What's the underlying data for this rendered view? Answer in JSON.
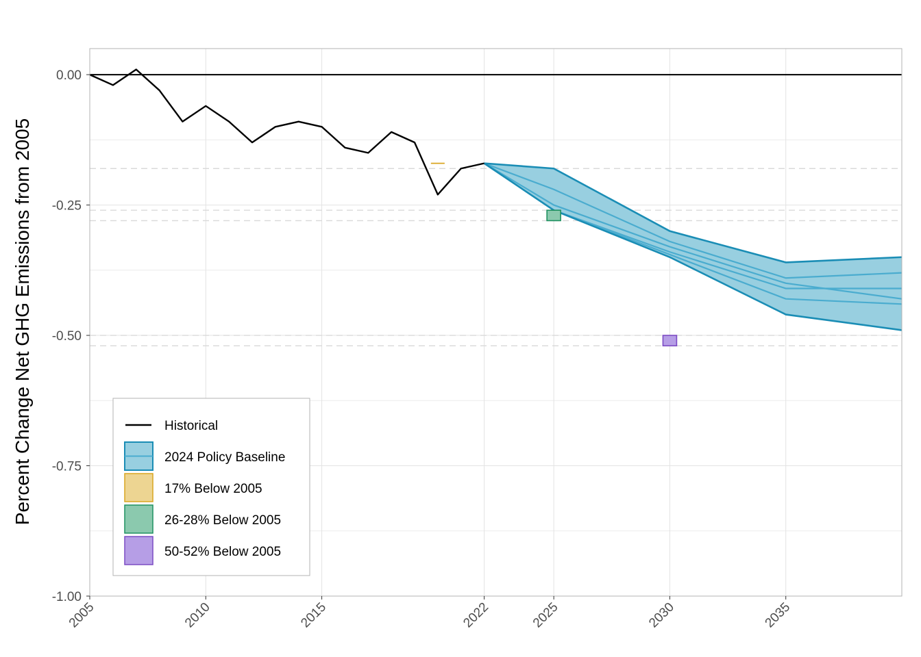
{
  "chart_data": {
    "type": "line",
    "title": "",
    "xlabel": "",
    "ylabel": "Percent Change Net GHG Emissions from 2005",
    "xlim": [
      2005,
      2040
    ],
    "ylim": [
      -1.0,
      0.05
    ],
    "x_ticks": [
      2005,
      2010,
      2015,
      2022,
      2025,
      2030,
      2035
    ],
    "x_tick_labels": [
      "2005",
      "2010",
      "2015",
      "2022",
      "2025",
      "2030",
      "2035"
    ],
    "y_ticks": [
      0.0,
      -0.25,
      -0.5,
      -0.75,
      -1.0
    ],
    "y_tick_labels": [
      "0.00",
      "-0.25",
      "-0.50",
      "-0.75",
      "-1.00"
    ],
    "grid": true,
    "legend_position": "bottom-left",
    "reference_lines": [
      {
        "y": 0.0,
        "style": "solid",
        "color": "#000000"
      },
      {
        "y": -0.18,
        "style": "dashed",
        "color": "#d9d9d9"
      },
      {
        "y": -0.26,
        "style": "dashed",
        "color": "#d9d9d9"
      },
      {
        "y": -0.28,
        "style": "dashed",
        "color": "#d9d9d9"
      },
      {
        "y": -0.5,
        "style": "dashed",
        "color": "#d9d9d9"
      },
      {
        "y": -0.52,
        "style": "dashed",
        "color": "#d9d9d9"
      }
    ],
    "historical": {
      "name": "Historical",
      "color": "#000000",
      "x": [
        2005,
        2006,
        2007,
        2008,
        2009,
        2010,
        2011,
        2012,
        2013,
        2014,
        2015,
        2016,
        2017,
        2018,
        2019,
        2020,
        2021,
        2022
      ],
      "y": [
        0.0,
        -0.02,
        0.01,
        -0.03,
        -0.09,
        -0.06,
        -0.09,
        -0.13,
        -0.1,
        -0.09,
        -0.1,
        -0.14,
        -0.15,
        -0.11,
        -0.13,
        -0.23,
        -0.18,
        -0.17
      ]
    },
    "policy_baseline": {
      "name": "2024 Policy Baseline",
      "fill": "#98cfe0",
      "stroke": "#1a8db5",
      "inner_stroke": "#4aaccf",
      "x": [
        2022,
        2025,
        2030,
        2035,
        2040
      ],
      "upper": [
        -0.17,
        -0.18,
        -0.3,
        -0.36,
        -0.35
      ],
      "lower": [
        -0.17,
        -0.26,
        -0.35,
        -0.46,
        -0.49
      ],
      "scenarios": [
        [
          -0.17,
          -0.22,
          -0.32,
          -0.39,
          -0.38
        ],
        [
          -0.17,
          -0.25,
          -0.33,
          -0.4,
          -0.43
        ],
        [
          -0.17,
          -0.26,
          -0.34,
          -0.41,
          -0.41
        ],
        [
          -0.17,
          -0.26,
          -0.345,
          -0.43,
          -0.44
        ]
      ]
    },
    "targets": [
      {
        "name": "17% Below 2005",
        "year": 2020,
        "y_high": -0.17,
        "y_low": -0.17,
        "fill": "#edd592",
        "stroke": "#d9a520"
      },
      {
        "name": "26-28% Below 2005",
        "year": 2025,
        "y_high": -0.26,
        "y_low": -0.28,
        "fill": "#8bc9ae",
        "stroke": "#1f9160"
      },
      {
        "name": "50-52% Below 2005",
        "year": 2030,
        "y_high": -0.5,
        "y_low": -0.52,
        "fill": "#b69ee6",
        "stroke": "#7c4bc4"
      }
    ],
    "legend": [
      "Historical",
      "2024 Policy Baseline",
      "17% Below 2005",
      "26-28% Below 2005",
      "50-52% Below 2005"
    ]
  }
}
